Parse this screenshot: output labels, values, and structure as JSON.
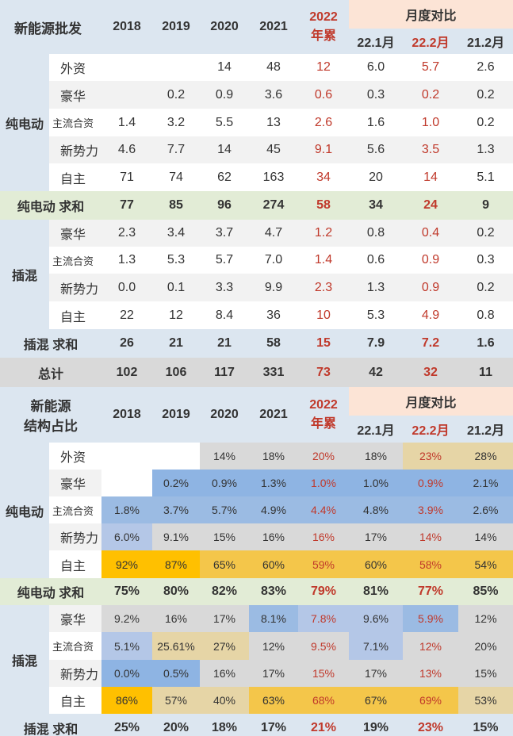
{
  "table1": {
    "title": "新能源批发",
    "years": [
      "2018",
      "2019",
      "2020",
      "2021"
    ],
    "ytd_line1": "2022",
    "ytd_line2": "年累",
    "monthly_label": "月度对比",
    "months": [
      "22.1月",
      "22.2月",
      "21.2月"
    ],
    "bev_group": "纯电动",
    "bev_rows": [
      {
        "label": "外资",
        "values": [
          "",
          "",
          "14",
          "48",
          "12",
          "6.0",
          "5.7",
          "2.6"
        ]
      },
      {
        "label": "豪华",
        "values": [
          "",
          "0.2",
          "0.9",
          "3.6",
          "0.6",
          "0.3",
          "0.2",
          "0.2"
        ]
      },
      {
        "label": "主流合资",
        "values": [
          "1.4",
          "3.2",
          "5.5",
          "13",
          "2.6",
          "1.6",
          "1.0",
          "0.2"
        ]
      },
      {
        "label": "新势力",
        "values": [
          "4.6",
          "7.7",
          "14",
          "45",
          "9.1",
          "5.6",
          "3.5",
          "1.3"
        ]
      },
      {
        "label": "自主",
        "values": [
          "71",
          "74",
          "62",
          "163",
          "34",
          "20",
          "14",
          "5.1"
        ]
      }
    ],
    "bev_sum": {
      "label": "纯电动 求和",
      "values": [
        "77",
        "85",
        "96",
        "274",
        "58",
        "34",
        "24",
        "9"
      ]
    },
    "phev_group": "插混",
    "phev_rows": [
      {
        "label": "豪华",
        "values": [
          "2.3",
          "3.4",
          "3.7",
          "4.7",
          "1.2",
          "0.8",
          "0.4",
          "0.2"
        ]
      },
      {
        "label": "主流合资",
        "values": [
          "1.3",
          "5.3",
          "5.7",
          "7.0",
          "1.4",
          "0.6",
          "0.9",
          "0.3"
        ]
      },
      {
        "label": "新势力",
        "values": [
          "0.0",
          "0.1",
          "3.3",
          "9.9",
          "2.3",
          "1.3",
          "0.9",
          "0.2"
        ]
      },
      {
        "label": "自主",
        "values": [
          "22",
          "12",
          "8.4",
          "36",
          "10",
          "5.3",
          "4.9",
          "0.8"
        ]
      }
    ],
    "phev_sum": {
      "label": "插混 求和",
      "values": [
        "26",
        "21",
        "21",
        "58",
        "15",
        "7.9",
        "7.2",
        "1.6"
      ]
    },
    "total": {
      "label": "总计",
      "values": [
        "102",
        "106",
        "117",
        "331",
        "73",
        "42",
        "32",
        "11"
      ]
    }
  },
  "table2": {
    "title_line1": "新能源",
    "title_line2": "结构占比",
    "years": [
      "2018",
      "2019",
      "2020",
      "2021"
    ],
    "ytd_line1": "2022",
    "ytd_line2": "年累",
    "monthly_label": "月度对比",
    "months": [
      "22.1月",
      "22.2月",
      "21.2月"
    ],
    "bev_group": "纯电动",
    "bev_rows": [
      {
        "label": "外资",
        "values": [
          "",
          "",
          "14%",
          "18%",
          "20%",
          "18%",
          "23%",
          "28%"
        ]
      },
      {
        "label": "豪华",
        "values": [
          "",
          "0.2%",
          "0.9%",
          "1.3%",
          "1.0%",
          "1.0%",
          "0.9%",
          "2.1%"
        ]
      },
      {
        "label": "主流合资",
        "values": [
          "1.8%",
          "3.7%",
          "5.7%",
          "4.9%",
          "4.4%",
          "4.8%",
          "3.9%",
          "2.6%"
        ]
      },
      {
        "label": "新势力",
        "values": [
          "6.0%",
          "9.1%",
          "15%",
          "16%",
          "16%",
          "17%",
          "14%",
          "14%"
        ]
      },
      {
        "label": "自主",
        "values": [
          "92%",
          "87%",
          "65%",
          "60%",
          "59%",
          "60%",
          "58%",
          "54%"
        ]
      }
    ],
    "bev_sum": {
      "label": "纯电动 求和",
      "values": [
        "75%",
        "80%",
        "82%",
        "83%",
        "79%",
        "81%",
        "77%",
        "85%"
      ]
    },
    "phev_group": "插混",
    "phev_rows": [
      {
        "label": "豪华",
        "values": [
          "9.2%",
          "16%",
          "17%",
          "8.1%",
          "7.8%",
          "9.6%",
          "5.9%",
          "12%"
        ]
      },
      {
        "label": "主流合资",
        "values": [
          "5.1%",
          "25.61%",
          "27%",
          "12%",
          "9.5%",
          "7.1%",
          "12%",
          "20%"
        ]
      },
      {
        "label": "新势力",
        "values": [
          "0.0%",
          "0.5%",
          "16%",
          "17%",
          "15%",
          "17%",
          "13%",
          "15%"
        ]
      },
      {
        "label": "自主",
        "values": [
          "86%",
          "57%",
          "40%",
          "63%",
          "68%",
          "67%",
          "69%",
          "53%"
        ]
      }
    ],
    "phev_sum": {
      "label": "插混 求和",
      "values": [
        "25%",
        "20%",
        "18%",
        "17%",
        "21%",
        "19%",
        "23%",
        "15%"
      ]
    }
  },
  "colors": {
    "header_blue": "#dce6f0",
    "header_peach": "#fce4d6",
    "sum_green": "#e2ecd6",
    "highlight_red": "#c0392b"
  }
}
